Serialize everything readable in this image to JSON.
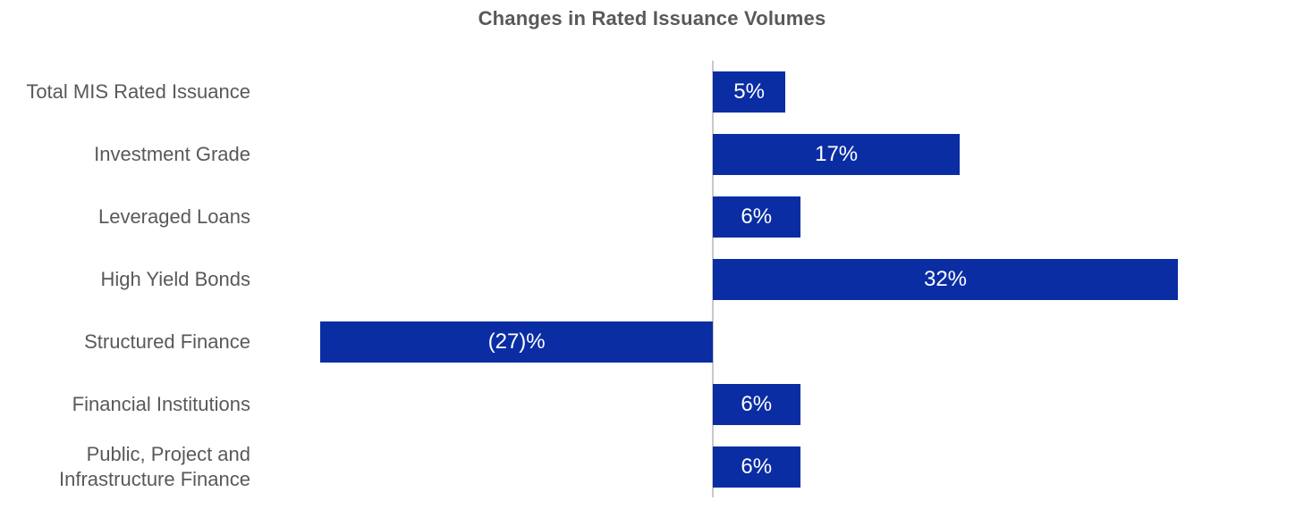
{
  "chart_data": {
    "type": "bar",
    "orientation": "horizontal",
    "title": "Changes in Rated Issuance Volumes",
    "categories": [
      "Total MIS Rated Issuance",
      "Investment Grade",
      "Leveraged Loans",
      "High Yield Bonds",
      "Structured Finance",
      "Financial Institutions",
      "Public, Project and\nInfrastructure Finance"
    ],
    "values": [
      5,
      17,
      6,
      32,
      -27,
      6,
      6
    ],
    "value_labels": [
      "5%",
      "17%",
      "6%",
      "32%",
      "(27)%",
      "6%",
      "6%"
    ],
    "xlim": [
      -27,
      32
    ],
    "grid": false,
    "legend": "none",
    "value_label_position": "inside-center",
    "axis_baseline_value": 0
  },
  "colors": {
    "bar_fill": "#0a2da3",
    "value_text": "#ffffff",
    "category_text": "#595959",
    "title_text": "#595959",
    "axis_line": "#c9c9c9",
    "background": "#ffffff"
  }
}
